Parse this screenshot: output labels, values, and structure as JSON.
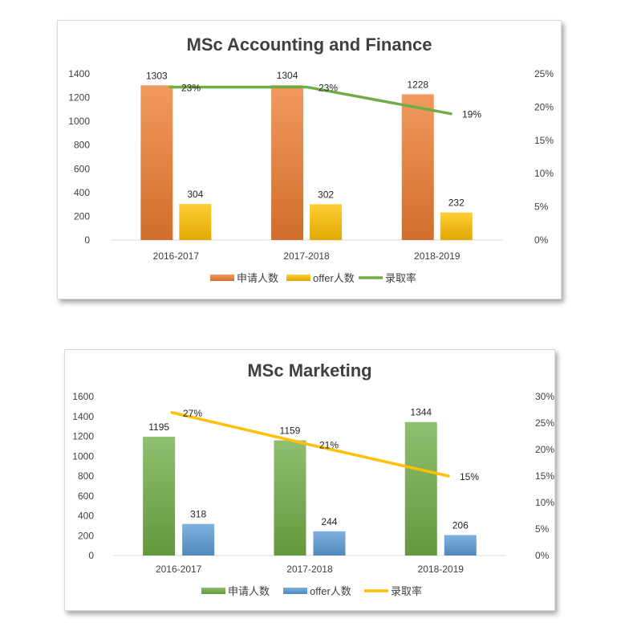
{
  "chart_data": [
    {
      "type": "bar",
      "title": "MSc Accounting and Finance",
      "categories": [
        "2016-2017",
        "2017-2018",
        "2018-2019"
      ],
      "series": [
        {
          "name": "申请人数",
          "type": "bar",
          "axis": "left",
          "values": [
            1303,
            1304,
            1228
          ],
          "color": "#ed7d31"
        },
        {
          "name": "offer人数",
          "type": "bar",
          "axis": "left",
          "values": [
            304,
            302,
            232
          ],
          "color": "#ffc000"
        },
        {
          "name": "录取率",
          "type": "line",
          "axis": "right",
          "values": [
            23,
            23,
            19
          ],
          "color": "#70ad47"
        }
      ],
      "value_labels": {
        "bars": [
          [
            "1303",
            "1304",
            "1228"
          ],
          [
            "304",
            "302",
            "232"
          ]
        ],
        "line": [
          "23%",
          "23%",
          "19%"
        ]
      },
      "ylim": [
        0,
        1400
      ],
      "yticks": [
        "0",
        "200",
        "400",
        "600",
        "800",
        "1000",
        "1200",
        "1400"
      ],
      "y2lim": [
        0,
        25
      ],
      "y2ticks": [
        "0%",
        "5%",
        "10%",
        "15%",
        "20%",
        "25%"
      ],
      "legend": "bottom",
      "grid": false
    },
    {
      "type": "bar",
      "title": "MSc Marketing",
      "categories": [
        "2016-2017",
        "2017-2018",
        "2018-2019"
      ],
      "series": [
        {
          "name": "申请人数",
          "type": "bar",
          "axis": "left",
          "values": [
            1195,
            1159,
            1344
          ],
          "color": "#70ad47"
        },
        {
          "name": "offer人数",
          "type": "bar",
          "axis": "left",
          "values": [
            318,
            244,
            206
          ],
          "color": "#5b9bd5"
        },
        {
          "name": "录取率",
          "type": "line",
          "axis": "right",
          "values": [
            27,
            21,
            15
          ],
          "color": "#ffc000"
        }
      ],
      "value_labels": {
        "bars": [
          [
            "1195",
            "1159",
            "1344"
          ],
          [
            "318",
            "244",
            "206"
          ]
        ],
        "line": [
          "27%",
          "21%",
          "15%"
        ]
      },
      "ylim": [
        0,
        1600
      ],
      "yticks": [
        "0",
        "200",
        "400",
        "600",
        "800",
        "1000",
        "1200",
        "1400",
        "1600"
      ],
      "y2lim": [
        0,
        30
      ],
      "y2ticks": [
        "0%",
        "5%",
        "10%",
        "15%",
        "20%",
        "25%",
        "30%"
      ],
      "legend": "bottom",
      "grid": false
    }
  ]
}
